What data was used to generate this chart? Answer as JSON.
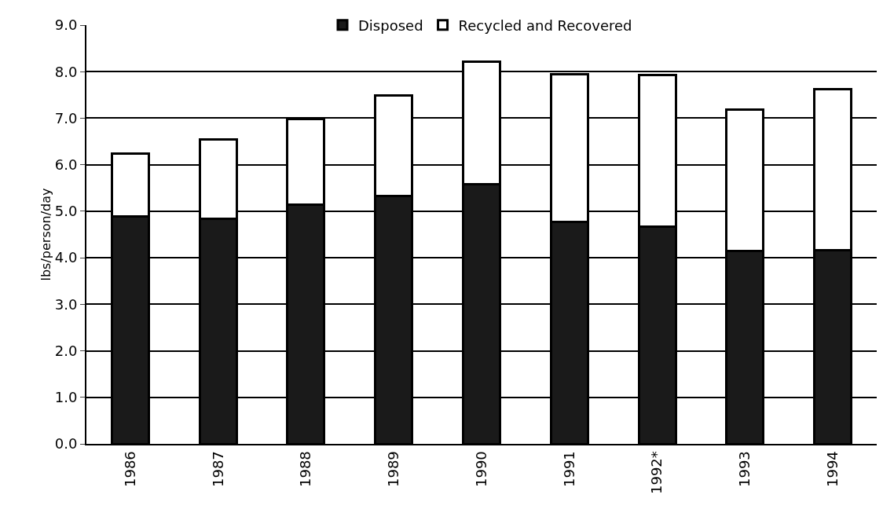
{
  "chart_data": {
    "type": "bar",
    "stacked": true,
    "ylabel": "lbs/person/day",
    "categories": [
      "1986",
      "1987",
      "1988",
      "1989",
      "1990",
      "1991",
      "1992*",
      "1993",
      "1994"
    ],
    "series": [
      {
        "name": "Disposed",
        "color": "#1a1a1a",
        "values": [
          4.89,
          4.84,
          5.14,
          5.33,
          5.58,
          4.77,
          4.67,
          4.15,
          4.17
        ]
      },
      {
        "name": "Recycled and Recovered",
        "color": "#ffffff",
        "values": [
          1.35,
          1.7,
          1.84,
          2.16,
          2.64,
          3.17,
          3.25,
          3.04,
          3.46
        ]
      }
    ],
    "ylim": [
      0,
      9
    ],
    "yticks": [
      {
        "value": 0,
        "label": "0.0"
      },
      {
        "value": 1,
        "label": "1.0"
      },
      {
        "value": 2,
        "label": "2.0"
      },
      {
        "value": 3,
        "label": "3.0"
      },
      {
        "value": 4,
        "label": "4.0"
      },
      {
        "value": 5,
        "label": "5.0"
      },
      {
        "value": 6,
        "label": "6.0"
      },
      {
        "value": 7,
        "label": "7.0"
      },
      {
        "value": 8,
        "label": "8.0"
      },
      {
        "value": 9,
        "label": "9.0"
      }
    ],
    "grid": "y",
    "legend": "top"
  }
}
